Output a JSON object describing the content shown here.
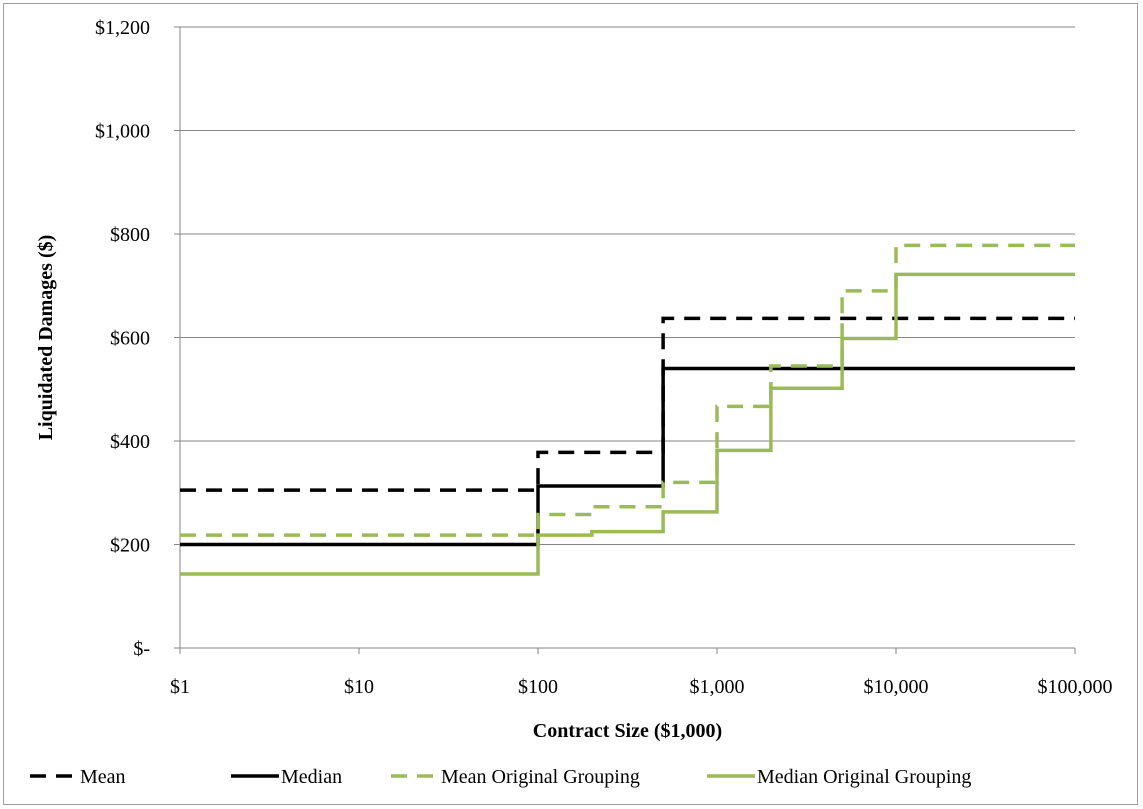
{
  "chart_data": {
    "type": "line",
    "step": true,
    "xscale": "log",
    "title": "",
    "xlabel": "Contract Size ($1,000)",
    "ylabel": "Liquidated Damages ($)",
    "xlim": [
      1,
      100000
    ],
    "ylim": [
      0,
      1200
    ],
    "grid": true,
    "legend_position": "bottom",
    "x_tick_values": [
      1,
      10,
      100,
      1000,
      10000,
      100000
    ],
    "x_tick_labels": [
      "$1",
      "$10",
      "$100",
      "$1,000",
      "$10,000",
      "$100,000"
    ],
    "y_tick_values": [
      0,
      200,
      400,
      600,
      800,
      1000,
      1200
    ],
    "y_tick_labels": [
      "$-",
      "$200",
      "$400",
      "$600",
      "$800",
      "$1,000",
      "$1,200"
    ],
    "series": [
      {
        "name": "Mean",
        "color": "#000000",
        "dash": "dashed",
        "x": [
          1,
          100,
          500,
          100000
        ],
        "y": [
          305,
          378,
          637,
          637
        ]
      },
      {
        "name": "Median",
        "color": "#000000",
        "dash": "solid",
        "x": [
          1,
          100,
          500,
          100000
        ],
        "y": [
          200,
          313,
          540,
          540
        ]
      },
      {
        "name": "Mean Original Grouping",
        "color": "#9bbb59",
        "dash": "dashed",
        "x": [
          1,
          100,
          200,
          500,
          1000,
          2000,
          5000,
          10000,
          100000
        ],
        "y": [
          218,
          258,
          273,
          320,
          467,
          545,
          690,
          778,
          778
        ]
      },
      {
        "name": "Median Original Grouping",
        "color": "#9bbb59",
        "dash": "solid",
        "x": [
          1,
          100,
          200,
          500,
          1000,
          2000,
          5000,
          10000,
          100000
        ],
        "y": [
          143,
          218,
          225,
          263,
          382,
          502,
          598,
          722,
          722
        ]
      }
    ]
  }
}
